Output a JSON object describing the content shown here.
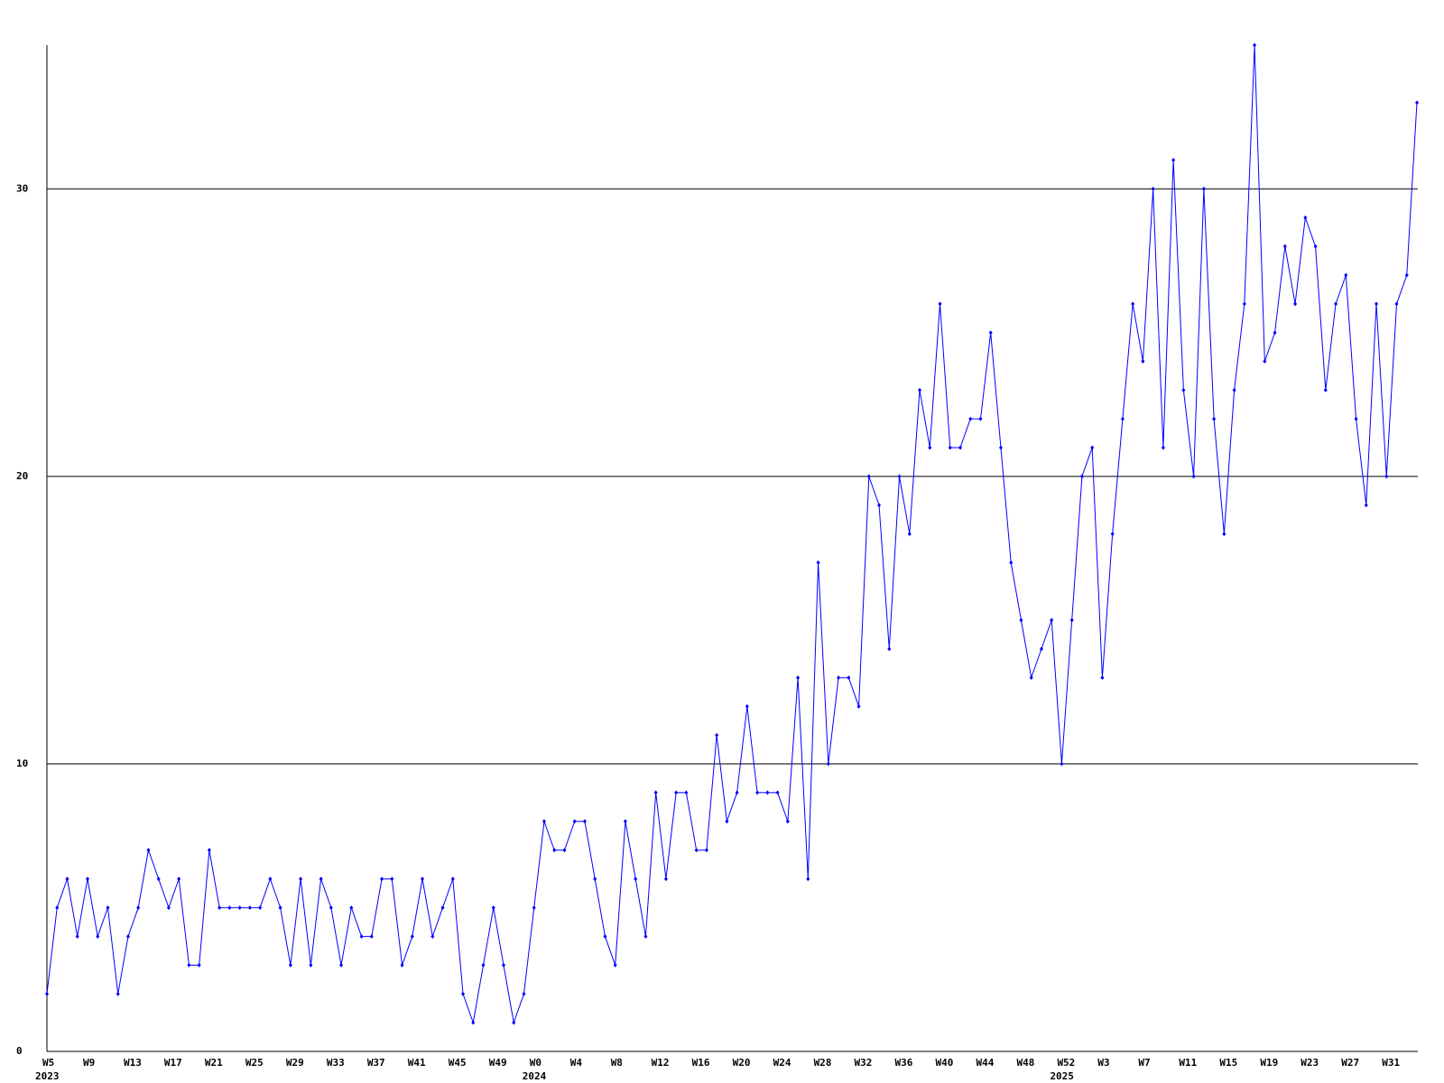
{
  "chart_data": {
    "type": "line",
    "categories": [
      "W5",
      null,
      null,
      null,
      "W9",
      null,
      null,
      null,
      "W13",
      null,
      null,
      null,
      "W17",
      null,
      null,
      null,
      "W21",
      null,
      null,
      null,
      "W25",
      null,
      null,
      null,
      "W29",
      null,
      null,
      null,
      "W33",
      null,
      null,
      null,
      "W37",
      null,
      null,
      null,
      "W41",
      null,
      null,
      null,
      "W45",
      null,
      null,
      null,
      "W49",
      null,
      null,
      null,
      "W0",
      null,
      null,
      null,
      "W4",
      null,
      null,
      null,
      "W8",
      null,
      null,
      null,
      "W12",
      null,
      null,
      null,
      "W16",
      null,
      null,
      null,
      "W20",
      null,
      null,
      null,
      "W24",
      null,
      null,
      null,
      "W28",
      null,
      null,
      null,
      "W32",
      null,
      null,
      null,
      "W36",
      null,
      null,
      null,
      "W40",
      null,
      null,
      null,
      "W44",
      null,
      null,
      null,
      "W48",
      null,
      null,
      null,
      "W52",
      null,
      null,
      null,
      "W3",
      null,
      null,
      null,
      "W7",
      null,
      null,
      null,
      "W11",
      null,
      null,
      null,
      "W15",
      null,
      null,
      null,
      "W19",
      null,
      null,
      null,
      "W23",
      null,
      null,
      null,
      "W27",
      null,
      null,
      null,
      "W31",
      null,
      null,
      null
    ],
    "year_labels": [
      "2023",
      null,
      null,
      null,
      null,
      null,
      null,
      null,
      null,
      null,
      null,
      null,
      null,
      null,
      null,
      null,
      null,
      null,
      null,
      null,
      null,
      null,
      null,
      null,
      null,
      null,
      null,
      null,
      null,
      null,
      null,
      null,
      null,
      null,
      null,
      null,
      null,
      null,
      null,
      null,
      null,
      null,
      null,
      null,
      null,
      null,
      null,
      null,
      "2024",
      null,
      null,
      null,
      null,
      null,
      null,
      null,
      null,
      null,
      null,
      null,
      null,
      null,
      null,
      null,
      null,
      null,
      null,
      null,
      null,
      null,
      null,
      null,
      null,
      null,
      null,
      null,
      null,
      null,
      null,
      null,
      null,
      null,
      null,
      null,
      null,
      null,
      null,
      null,
      null,
      null,
      null,
      null,
      null,
      null,
      null,
      null,
      null,
      null,
      null,
      null,
      "2025",
      null,
      null,
      null,
      null,
      null,
      null,
      null,
      null,
      null,
      null,
      null,
      null,
      null,
      null,
      null,
      null,
      null,
      null,
      null,
      null,
      null,
      null,
      null,
      null,
      null,
      null,
      null,
      null,
      null,
      null,
      null,
      null,
      null,
      null,
      null
    ],
    "series": [
      {
        "color": "#0000ff",
        "values": [
          2,
          5,
          6,
          4,
          6,
          4,
          5,
          2,
          4,
          5,
          7,
          6,
          5,
          6,
          3,
          3,
          7,
          5,
          5,
          5,
          5,
          5,
          6,
          5,
          3,
          6,
          3,
          6,
          5,
          3,
          5,
          4,
          4,
          6,
          6,
          3,
          4,
          6,
          4,
          5,
          6,
          2,
          1,
          3,
          5,
          3,
          1,
          2,
          5,
          8,
          7,
          7,
          8,
          8,
          6,
          4,
          3,
          8,
          6,
          4,
          9,
          6,
          9,
          9,
          7,
          7,
          11,
          8,
          9,
          12,
          9,
          9,
          9,
          8,
          13,
          6,
          17,
          10,
          13,
          13,
          12,
          20,
          19,
          14,
          20,
          18,
          23,
          21,
          26,
          21,
          21,
          22,
          22,
          25,
          21,
          17,
          15,
          13,
          14,
          15,
          10,
          15,
          20,
          21,
          13,
          18,
          22,
          26,
          24,
          30,
          21,
          31,
          23,
          20,
          30,
          22,
          18,
          23,
          26,
          35,
          24,
          25,
          28,
          26,
          29,
          28,
          23,
          26,
          27,
          22,
          19,
          26,
          20,
          26,
          27,
          33
        ]
      }
    ],
    "ylim": [
      0,
      35
    ],
    "yticks": [
      0,
      10,
      20,
      30
    ],
    "grid": true
  }
}
